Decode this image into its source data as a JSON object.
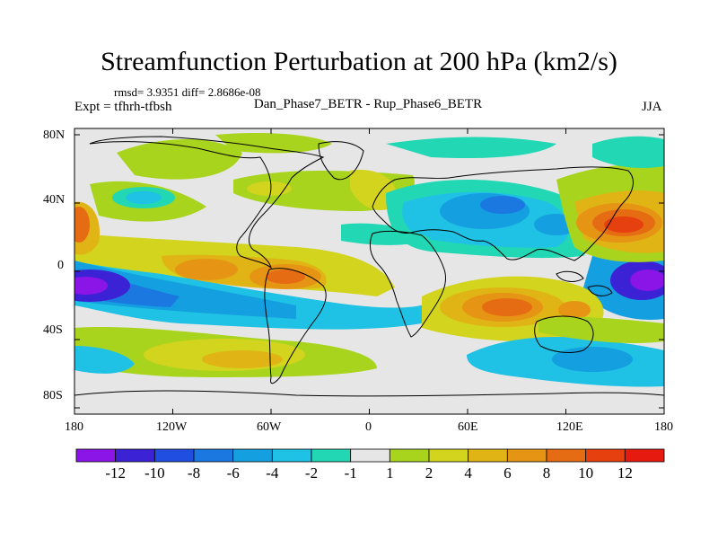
{
  "title": "Streamfunction Perturbation at 200 hPa (km2/s)",
  "stats": "rmsd= 3.9351 diff= 2.8686e-08",
  "experiment": "Expt = tfhrh-tfbsh",
  "comparison": "Dan_Phase7_BETR - Rup_Phase6_BETR",
  "season": "JJA",
  "lat_ticks": [
    "80N",
    "40N",
    "0",
    "40S",
    "80S"
  ],
  "lon_ticks": [
    "180",
    "120W",
    "60W",
    "0",
    "60E",
    "120E",
    "180"
  ],
  "colorbar": {
    "labels": [
      "-12",
      "-10",
      "-8",
      "-6",
      "-4",
      "-2",
      "-1",
      "1",
      "2",
      "4",
      "6",
      "8",
      "10",
      "12"
    ],
    "colors": [
      "#8a15e6",
      "#3b22d4",
      "#1f4ee0",
      "#1a78e0",
      "#149fe0",
      "#1fc2e4",
      "#22d7b4",
      "#e6e6e6",
      "#a8d41e",
      "#d2d41e",
      "#e0b414",
      "#e69414",
      "#e66c14",
      "#e6400f",
      "#e61a0f"
    ]
  }
}
